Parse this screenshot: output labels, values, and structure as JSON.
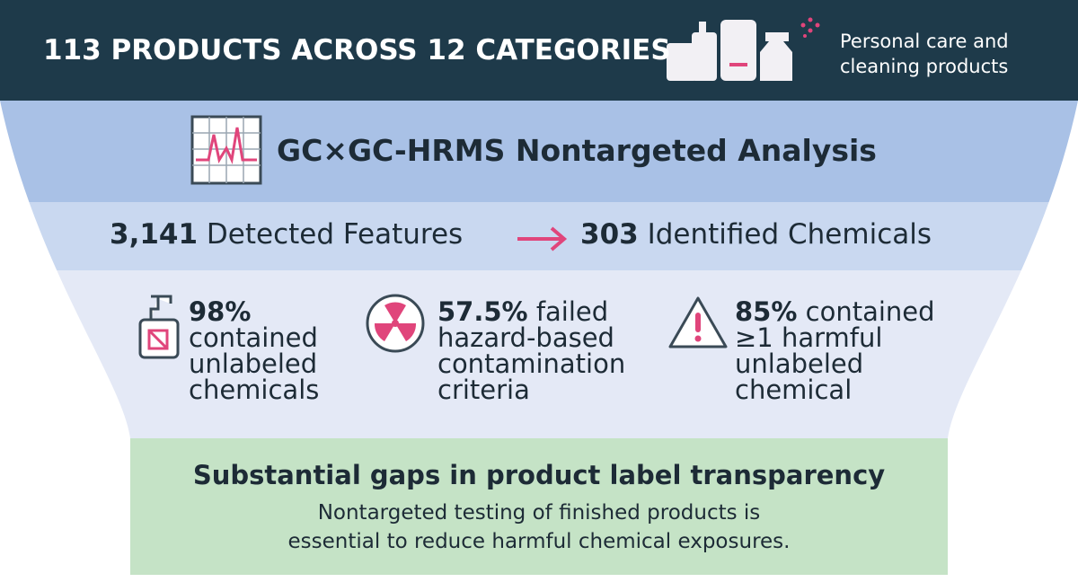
{
  "header": {
    "title": "113 PRODUCTS ACROSS 12 CATEGORIES",
    "caption_lines": [
      "Personal care and",
      "cleaning products"
    ]
  },
  "method": {
    "title": "GC×GC-HRMS Nontargeted Analysis"
  },
  "pipeline": {
    "from_value": "3,141",
    "from_text": "Detected Features",
    "to_value": "303",
    "to_text": "Identified Chemicals"
  },
  "stats": [
    {
      "value": "98%",
      "lines": [
        "contained",
        "unlabeled",
        "chemicals"
      ]
    },
    {
      "value": "57.5%",
      "lines": [
        "failed",
        "hazard-based",
        "contamination",
        "criteria"
      ]
    },
    {
      "value": "85%",
      "lines": [
        "contained",
        "≥1 harmful",
        "unlabeled",
        "chemical"
      ]
    }
  ],
  "conclusion": {
    "title": "Substantial gaps in product label transparency",
    "lines": [
      "Nontargeted testing of finished products is",
      "essential to reduce harmful chemical exposures."
    ]
  }
}
